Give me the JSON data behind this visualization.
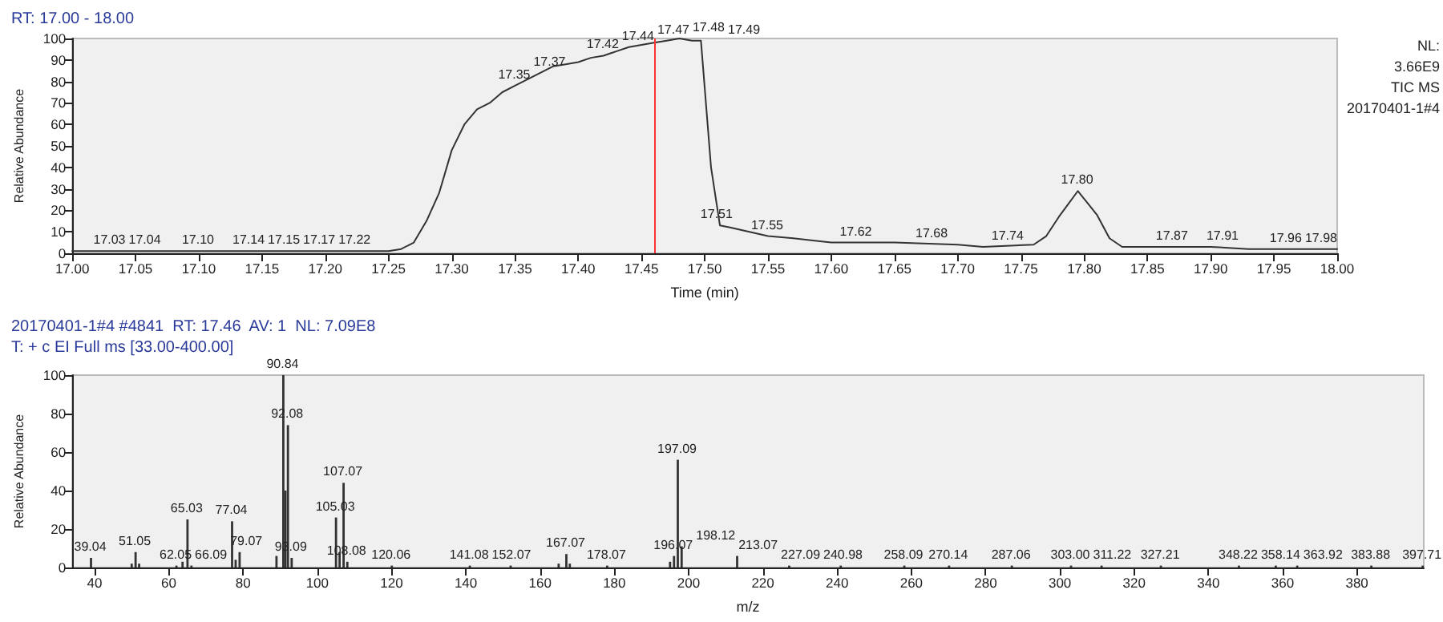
{
  "chart_data": [
    {
      "type": "line",
      "title": "RT: 17.00 - 18.00",
      "xlabel": "Time (min)",
      "ylabel": "Relative Abundance",
      "xlim": [
        17,
        18
      ],
      "xticks": [
        {
          "value": 17,
          "label": "17.00"
        },
        {
          "value": 17.05,
          "label": "17.05"
        },
        {
          "value": 17.1,
          "label": "17.10"
        },
        {
          "value": 17.15,
          "label": "17.15"
        },
        {
          "value": 17.2,
          "label": "17.20"
        },
        {
          "value": 17.25,
          "label": "17.25"
        },
        {
          "value": 17.3,
          "label": "17.30"
        },
        {
          "value": 17.35,
          "label": "17.35"
        },
        {
          "value": 17.4,
          "label": "17.40"
        },
        {
          "value": 17.45,
          "label": "17.45"
        },
        {
          "value": 17.5,
          "label": "17.50"
        },
        {
          "value": 17.55,
          "label": "17.55"
        },
        {
          "value": 17.6,
          "label": "17.60"
        },
        {
          "value": 17.65,
          "label": "17.65"
        },
        {
          "value": 17.7,
          "label": "17.70"
        },
        {
          "value": 17.75,
          "label": "17.75"
        },
        {
          "value": 17.8,
          "label": "17.80"
        },
        {
          "value": 17.85,
          "label": "17.85"
        },
        {
          "value": 17.9,
          "label": "17.90"
        },
        {
          "value": 17.95,
          "label": "17.95"
        },
        {
          "value": 18,
          "label": "18.00"
        }
      ],
      "ylim": [
        0,
        100
      ],
      "yticks": [
        0,
        10,
        20,
        30,
        40,
        50,
        60,
        70,
        80,
        90,
        100
      ],
      "x": [
        17,
        17.1,
        17.2,
        17.24,
        17.25,
        17.26,
        17.27,
        17.28,
        17.29,
        17.3,
        17.31,
        17.32,
        17.33,
        17.34,
        17.35,
        17.36,
        17.37,
        17.38,
        17.39,
        17.4,
        17.41,
        17.42,
        17.43,
        17.44,
        17.45,
        17.46,
        17.47,
        17.48,
        17.49,
        17.497,
        17.505,
        17.512,
        17.52,
        17.55,
        17.57,
        17.6,
        17.65,
        17.7,
        17.72,
        17.76,
        17.77,
        17.78,
        17.795,
        17.81,
        17.82,
        17.83,
        17.9,
        17.93,
        18
      ],
      "values": [
        1,
        1,
        1,
        1,
        1,
        2,
        5,
        15,
        28,
        48,
        60,
        67,
        70,
        75,
        78,
        81,
        84,
        87,
        88,
        89,
        91,
        92,
        94,
        96,
        97,
        98,
        99,
        100,
        99,
        99,
        40,
        13,
        12,
        8,
        7,
        5,
        5,
        4,
        3,
        4,
        8,
        17,
        29,
        18,
        7,
        3,
        3,
        2,
        2
      ],
      "color": "#333333",
      "marker": "none",
      "grid": false,
      "ref_lines": [
        {
          "axis": "x",
          "value": 17.46,
          "color": "#ff3333"
        }
      ],
      "annotations": [
        {
          "text": "17.03",
          "x": 17.03,
          "y": 1
        },
        {
          "text": "17.04",
          "x": 17.04,
          "y": 1
        },
        {
          "text": "17.10",
          "x": 17.1,
          "y": 1
        },
        {
          "text": "17.14",
          "x": 17.14,
          "y": 1
        },
        {
          "text": "17.15",
          "x": 17.15,
          "y": 1
        },
        {
          "text": "17.17",
          "x": 17.17,
          "y": 1
        },
        {
          "text": "17.22",
          "x": 17.22,
          "y": 1
        },
        {
          "text": "17.35",
          "x": 17.35,
          "y": 78
        },
        {
          "text": "17.37",
          "x": 17.37,
          "y": 84
        },
        {
          "text": "17.42",
          "x": 17.42,
          "y": 92
        },
        {
          "text": "17.44",
          "x": 17.44,
          "y": 96
        },
        {
          "text": "17.47",
          "x": 17.47,
          "y": 99
        },
        {
          "text": "17.48",
          "x": 17.48,
          "y": 100
        },
        {
          "text": "17.49",
          "x": 17.49,
          "y": 99
        },
        {
          "text": "17.51",
          "x": 17.51,
          "y": 13
        },
        {
          "text": "17.55",
          "x": 17.55,
          "y": 8
        },
        {
          "text": "17.62",
          "x": 17.62,
          "y": 5
        },
        {
          "text": "17.68",
          "x": 17.68,
          "y": 4
        },
        {
          "text": "17.74",
          "x": 17.74,
          "y": 3
        },
        {
          "text": "17.80",
          "x": 17.795,
          "y": 29
        },
        {
          "text": "17.87",
          "x": 17.87,
          "y": 3
        },
        {
          "text": "17.91",
          "x": 17.91,
          "y": 3
        },
        {
          "text": "17.96",
          "x": 17.96,
          "y": 2
        },
        {
          "text": "17.98",
          "x": 17.98,
          "y": 2
        },
        "NL:",
        "3.66E9",
        "TIC MS",
        "20170401-1#4"
      ]
    },
    {
      "type": "bar",
      "title": "20170401-1#4 #4841  RT: 17.46  AV: 1  NL: 7.09E8",
      "subtitle": "T: + c EI Full ms [33.00-400.00]",
      "xlabel": "m/z",
      "ylabel": "Relative Abundance",
      "xlim": [
        34,
        398
      ],
      "xticks": [
        40,
        60,
        80,
        100,
        120,
        140,
        160,
        180,
        200,
        220,
        240,
        260,
        280,
        300,
        320,
        340,
        360,
        380
      ],
      "ylim": [
        0,
        100
      ],
      "yticks": [
        0,
        20,
        40,
        60,
        80,
        100
      ],
      "x": [
        39.04,
        50,
        51.05,
        52,
        62.05,
        63.7,
        65.03,
        66.09,
        77.04,
        78,
        79.07,
        89,
        90.84,
        91.4,
        92.08,
        93.09,
        105.03,
        106,
        107.07,
        108.08,
        120.06,
        141.08,
        152.07,
        165,
        167.07,
        168,
        178.07,
        195,
        196.07,
        197.09,
        198.12,
        213.07,
        227.09,
        240.98,
        258.09,
        270.14,
        287.06,
        303.0,
        311.22,
        327.21,
        348.22,
        358.14,
        363.92,
        383.88,
        397.71
      ],
      "values": [
        5,
        2,
        8,
        2,
        1,
        3,
        25,
        1,
        24,
        4,
        8,
        6,
        100,
        40,
        74,
        5,
        26,
        8,
        44,
        3,
        1,
        1,
        1,
        2,
        7,
        2,
        1,
        3,
        6,
        56,
        11,
        6,
        1,
        1,
        1,
        1,
        1,
        1,
        1,
        1,
        1,
        1,
        1,
        1,
        1
      ],
      "color": "#333333",
      "grid": false,
      "annotations": [
        {
          "text": "39.04",
          "x": 39.04,
          "y": 5
        },
        {
          "text": "51.05",
          "x": 51.05,
          "y": 8
        },
        {
          "text": "62.05",
          "x": 62.05,
          "y": 1
        },
        {
          "text": "65.03",
          "x": 65.03,
          "y": 25
        },
        {
          "text": "66.09",
          "x": 66.09,
          "y": 1
        },
        {
          "text": "77.04",
          "x": 77.04,
          "y": 24
        },
        {
          "text": "79.07",
          "x": 79.07,
          "y": 8
        },
        {
          "text": "90.84",
          "x": 90.84,
          "y": 100
        },
        {
          "text": "92.08",
          "x": 92.08,
          "y": 74
        },
        {
          "text": "93.09",
          "x": 93.09,
          "y": 5
        },
        {
          "text": "105.03",
          "x": 105.03,
          "y": 26
        },
        {
          "text": "107.07",
          "x": 107.07,
          "y": 44
        },
        {
          "text": "108.08",
          "x": 108.08,
          "y": 3
        },
        {
          "text": "120.06",
          "x": 120.06,
          "y": 1
        },
        {
          "text": "141.08",
          "x": 141.08,
          "y": 1
        },
        {
          "text": "152.07",
          "x": 152.07,
          "y": 1
        },
        {
          "text": "167.07",
          "x": 167.07,
          "y": 7
        },
        {
          "text": "178.07",
          "x": 178.07,
          "y": 1
        },
        {
          "text": "196.07",
          "x": 196.07,
          "y": 6
        },
        {
          "text": "197.09",
          "x": 197.09,
          "y": 56
        },
        {
          "text": "198.12",
          "x": 198.12,
          "y": 11
        },
        {
          "text": "213.07",
          "x": 213.07,
          "y": 6
        },
        {
          "text": "227.09",
          "x": 227.09,
          "y": 1
        },
        {
          "text": "240.98",
          "x": 240.98,
          "y": 1
        },
        {
          "text": "258.09",
          "x": 258.09,
          "y": 1
        },
        {
          "text": "270.14",
          "x": 270.14,
          "y": 1
        },
        {
          "text": "287.06",
          "x": 287.06,
          "y": 1
        },
        {
          "text": "303.00",
          "x": 303.0,
          "y": 1
        },
        {
          "text": "311.22",
          "x": 311.22,
          "y": 1
        },
        {
          "text": "327.21",
          "x": 327.21,
          "y": 1
        },
        {
          "text": "348.22",
          "x": 348.22,
          "y": 1
        },
        {
          "text": "358.14",
          "x": 358.14,
          "y": 1
        },
        {
          "text": "363.92",
          "x": 363.92,
          "y": 1
        },
        {
          "text": "383.88",
          "x": 383.88,
          "y": 1
        },
        {
          "text": "397.71",
          "x": 397.71,
          "y": 1
        }
      ]
    }
  ]
}
